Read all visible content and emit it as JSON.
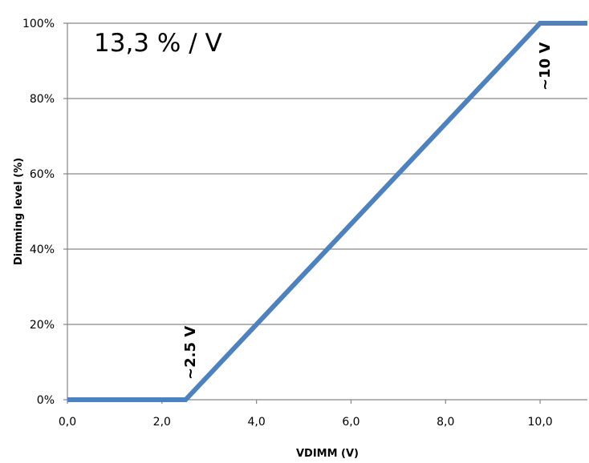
{
  "chart_data": {
    "type": "line",
    "title": "",
    "xlabel": "VDIMM (V)",
    "ylabel": "Dimming level (%)",
    "xlim": [
      0,
      11
    ],
    "ylim": [
      0,
      100
    ],
    "x_ticks": [
      0,
      2,
      4,
      6,
      8,
      10
    ],
    "x_tick_labels": [
      "0,0",
      "2,0",
      "4,0",
      "6,0",
      "8,0",
      "10,0"
    ],
    "y_ticks": [
      0,
      20,
      40,
      60,
      80,
      100
    ],
    "y_tick_labels": [
      "0%",
      "20%",
      "40%",
      "60%",
      "80%",
      "100%"
    ],
    "grid": "horizontal",
    "line_color": "#4f81bd",
    "series": [
      {
        "x": [
          0,
          2.5,
          10,
          11
        ],
        "y": [
          0,
          0,
          100,
          100
        ]
      }
    ],
    "annotations": [
      {
        "id": "slope",
        "text": "13,3 % / V",
        "style": "large"
      },
      {
        "id": "low",
        "text": "~2.5 V",
        "style": "rotated-bold"
      },
      {
        "id": "high",
        "text": "~10 V",
        "style": "rotated-bold"
      }
    ]
  }
}
